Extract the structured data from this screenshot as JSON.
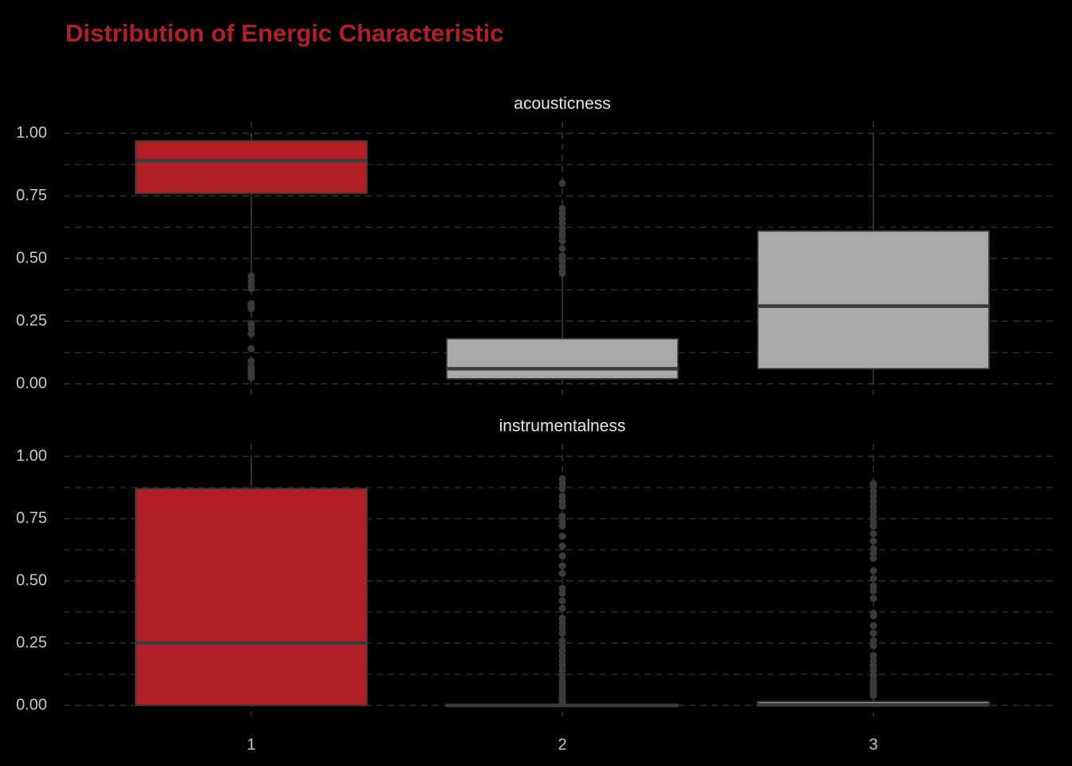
{
  "title": "Distribution of Energic Characteristic",
  "colors": {
    "background": "#000000",
    "title": "#B22026",
    "highlight_fill": "#B22026",
    "default_fill": "#A9A9A9",
    "box_line": "#3A3A3A",
    "grid": "#3A3A3A",
    "text": "#C8C8C8",
    "strip_text": "#E6E6E6"
  },
  "chart_data": {
    "type": "boxplot",
    "title": "Distribution of Energic Characteristic",
    "x_categories": [
      "1",
      "2",
      "3"
    ],
    "highlight_category": "1",
    "ylim": [
      0,
      1
    ],
    "y_ticks": [
      "0.00",
      "0.25",
      "0.50",
      "0.75",
      "1.00"
    ],
    "grid": "dashed major and minor",
    "facets": [
      {
        "name": "acousticness",
        "boxes": [
          {
            "category": "1",
            "q1": 0.76,
            "median": 0.89,
            "q3": 0.97,
            "whisker_low": 0.45,
            "whisker_high": 1.0,
            "outliers": [
              0.43,
              0.41,
              0.39,
              0.38,
              0.32,
              0.31,
              0.3,
              0.24,
              0.22,
              0.2,
              0.14,
              0.09,
              0.07,
              0.06,
              0.05,
              0.04,
              0.03,
              0.025
            ]
          },
          {
            "category": "2",
            "q1": 0.02,
            "median": 0.06,
            "q3": 0.18,
            "whisker_low": 0.0,
            "whisker_high": 0.43,
            "outliers": [
              0.8,
              0.7,
              0.68,
              0.66,
              0.64,
              0.62,
              0.6,
              0.59,
              0.57,
              0.54,
              0.51,
              0.49,
              0.47,
              0.45,
              0.44
            ]
          },
          {
            "category": "3",
            "q1": 0.06,
            "median": 0.31,
            "q3": 0.61,
            "whisker_low": 0.0,
            "whisker_high": 1.0,
            "outliers": []
          }
        ]
      },
      {
        "name": "instrumentalness",
        "boxes": [
          {
            "category": "1",
            "q1": 0.0,
            "median": 0.25,
            "q3": 0.87,
            "whisker_low": 0.0,
            "whisker_high": 0.99,
            "outliers": []
          },
          {
            "category": "2",
            "q1": 0.0,
            "median": 0.0,
            "q3": 0.002,
            "whisker_low": 0.0,
            "whisker_high": 0.005,
            "outliers": [
              0.91,
              0.89,
              0.87,
              0.84,
              0.82,
              0.8,
              0.76,
              0.74,
              0.72,
              0.68,
              0.64,
              0.6,
              0.56,
              0.53,
              0.47,
              0.45,
              0.42,
              0.39,
              0.35,
              0.33,
              0.31,
              0.29,
              0.26,
              0.24,
              0.22,
              0.2,
              0.18,
              0.16,
              0.14,
              0.12,
              0.1,
              0.09,
              0.08,
              0.07,
              0.06,
              0.05,
              0.04,
              0.03,
              0.02,
              0.015,
              0.01
            ]
          },
          {
            "category": "3",
            "q1": 0.0,
            "median": 0.002,
            "q3": 0.015,
            "whisker_low": 0.0,
            "whisker_high": 0.035,
            "outliers": [
              0.89,
              0.88,
              0.86,
              0.84,
              0.82,
              0.8,
              0.78,
              0.76,
              0.74,
              0.72,
              0.69,
              0.66,
              0.63,
              0.61,
              0.59,
              0.54,
              0.51,
              0.48,
              0.46,
              0.43,
              0.37,
              0.36,
              0.32,
              0.29,
              0.26,
              0.24,
              0.2,
              0.18,
              0.16,
              0.14,
              0.12,
              0.1,
              0.09,
              0.08,
              0.07,
              0.06,
              0.05,
              0.04
            ]
          }
        ]
      }
    ]
  }
}
